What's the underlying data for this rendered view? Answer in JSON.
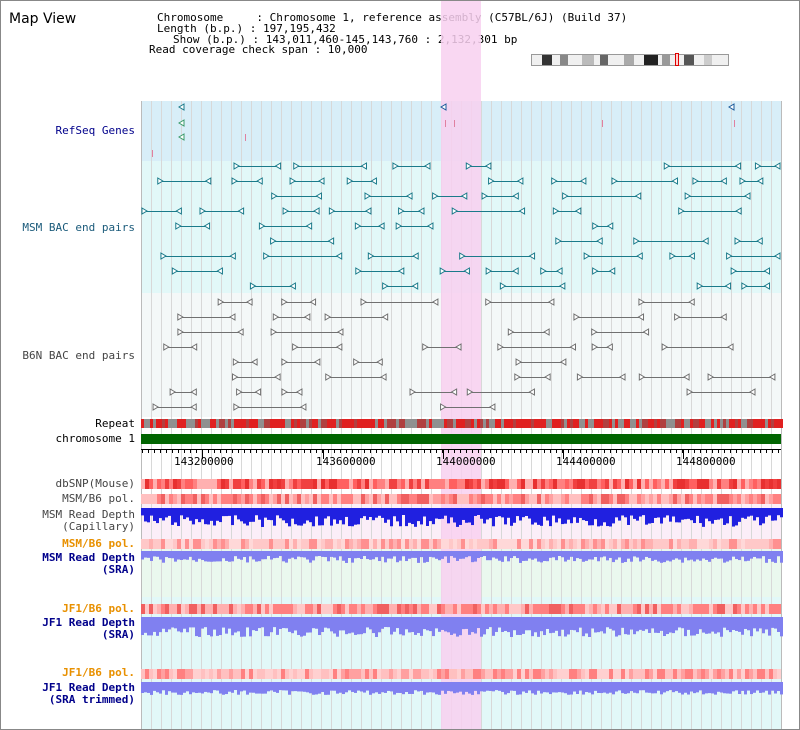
{
  "panel_title": "Map View",
  "info": {
    "chromosome_line": "Chromosome     : Chromosome 1, reference assembly (C57BL/6J) (Build 37)",
    "length_line": "Length (b.p.) : 197,195,432",
    "show_line": "Show (b.p.) : 143,011,460-145,143,760 : 2,132,301 bp",
    "span_line": "Read coverage check span : 10,000"
  },
  "tracks": {
    "refseq": "RefSeq Genes",
    "msm_bac": "MSM BAC end pairs",
    "b6n_bac": "B6N BAC end pairs",
    "repeat": "Repeat",
    "chromosome": "chromosome 1",
    "dbsnp": "dbSNP(Mouse)",
    "msm_b6_pol": "MSM/B6 pol.",
    "msm_depth_cap": "MSM Read Depth\n(Capillary)",
    "msm_b6_pol2": "MSM/B6 pol.",
    "msm_depth_sra": "MSM Read Depth\n(SRA)",
    "jf1_b6_pol": "JF1/B6 pol.",
    "jf1_depth_sra": "JF1 Read Depth\n(SRA)",
    "jf1_b6_pol2": "JF1/B6 pol.",
    "jf1_depth_trim": "JF1 Read Depth\n(SRA trimmed)"
  },
  "ruler": {
    "ticks": [
      "143200000",
      "143600000",
      "144000000",
      "144400000",
      "144800000"
    ]
  },
  "colors": {
    "label_blue": "#00008b",
    "label_orange": "#e89000",
    "refseq_bg": "#d8eef8",
    "msm_bg": "#e2f8f8",
    "b6n_bg": "#f4f8f8",
    "highlight": "#f8d0f0",
    "chromosome_bar": "#006400",
    "msm_arrow": "#1a7a8a",
    "b6n_arrow": "#707070",
    "depth_blue": "#2020e0",
    "depth_lav": "#8080f0"
  }
}
